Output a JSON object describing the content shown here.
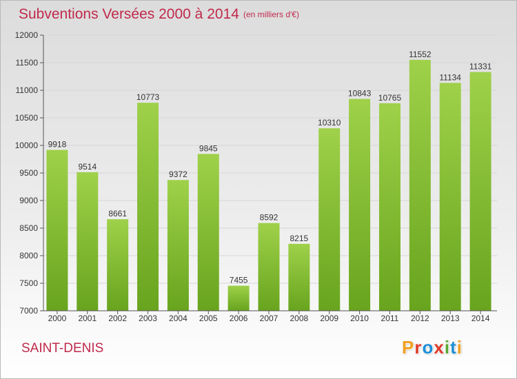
{
  "header": {
    "title": "Subventions Versées 2000 à 2014",
    "unit_note": "(en milliers d'€)"
  },
  "footer": {
    "city": "SAINT-DENIS",
    "logo_text": "Proxiti",
    "logo_colors": [
      "#f0a020",
      "#e03a2a",
      "#1e8fd6",
      "#e03a2a",
      "#5aa832",
      "#1e8fd6",
      "#f0a020"
    ]
  },
  "chart_data": {
    "type": "bar",
    "categories": [
      "2000",
      "2001",
      "2002",
      "2003",
      "2004",
      "2005",
      "2006",
      "2007",
      "2008",
      "2009",
      "2010",
      "2011",
      "2012",
      "2013",
      "2014"
    ],
    "values": [
      9918,
      9514,
      8661,
      10773,
      9372,
      9845,
      7455,
      8592,
      8215,
      10310,
      10843,
      10765,
      11552,
      11134,
      11331
    ],
    "title": "Subventions Versées 2000 à 2014",
    "xlabel": "",
    "ylabel": "",
    "ylim": [
      7000,
      12000
    ],
    "yticks": [
      7000,
      7500,
      8000,
      8500,
      9000,
      9500,
      10000,
      10500,
      11000,
      11500,
      12000
    ],
    "grid": true,
    "bar_color_light": "#9fd14a",
    "bar_color_dark": "#68a41e"
  }
}
